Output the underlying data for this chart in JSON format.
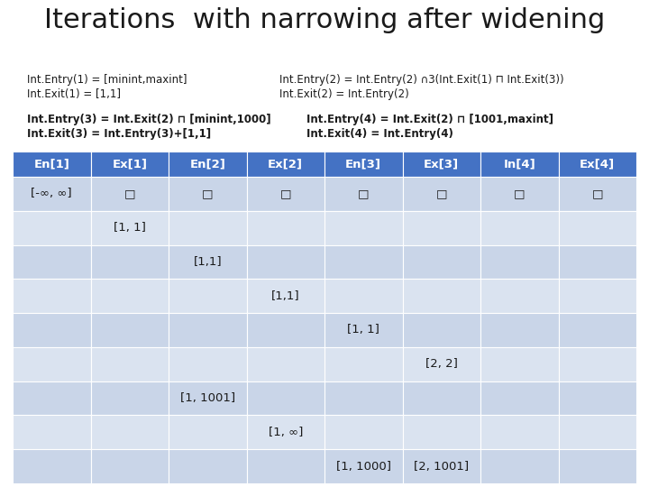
{
  "title": "Iterations  with narrowing after widening",
  "title_fontsize": 22,
  "info_lines": [
    [
      "Int.Entry(1) = [minint,maxint]",
      "Int.Entry(2) = Int.Entry(2) ∩3(Int.Exit(1) ⊓ Int.Exit(3))"
    ],
    [
      "Int.Exit(1) = [1,1]",
      "Int.Exit(2) = Int.Entry(2)"
    ]
  ],
  "info_lines2": [
    [
      "Int.Entry(3) = Int.Exit(2) ⊓ [minint,1000]",
      "Int.Entry(4) = Int.Exit(2) ⊓ [1001,maxint]"
    ],
    [
      "Int.Exit(3) = Int.Entry(3)+[1,1]",
      "Int.Exit(4) = Int.Entry(4)"
    ]
  ],
  "header": [
    "En[1]",
    "Ex[1]",
    "En[2]",
    "Ex[2]",
    "En[3]",
    "Ex[3]",
    "In[4]",
    "Ex[4]"
  ],
  "header_bg": "#4472C4",
  "header_fg": "#FFFFFF",
  "row_bg_even": "#C9D5E8",
  "row_bg_odd": "#DAE3F0",
  "col_count": 8,
  "rows": [
    [
      "[-∞, ∞]",
      "□",
      "□",
      "□",
      "□",
      "□",
      "□",
      "□"
    ],
    [
      "",
      "[1, 1]",
      "",
      "",
      "",
      "",
      "",
      ""
    ],
    [
      "",
      "",
      "[1,1]",
      "",
      "",
      "",
      "",
      ""
    ],
    [
      "",
      "",
      "",
      "[1,1]",
      "",
      "",
      "",
      ""
    ],
    [
      "",
      "",
      "",
      "",
      "[1, 1]",
      "",
      "",
      ""
    ],
    [
      "",
      "",
      "",
      "",
      "",
      "[2, 2]",
      "",
      ""
    ],
    [
      "",
      "",
      "[1, 1001]",
      "",
      "",
      "",
      "",
      ""
    ],
    [
      "",
      "",
      "",
      "[1, ∞]",
      "",
      "",
      "",
      ""
    ],
    [
      "",
      "",
      "",
      "",
      "[1, 1000]",
      "[2, 1001]",
      "",
      ""
    ]
  ],
  "font_family": "DejaVu Sans",
  "text_color": "#1A1A1A",
  "info_fontsize": 8.5,
  "info2_fontsize": 8.5,
  "cell_fontsize": 9.5,
  "header_fontsize": 9.5
}
